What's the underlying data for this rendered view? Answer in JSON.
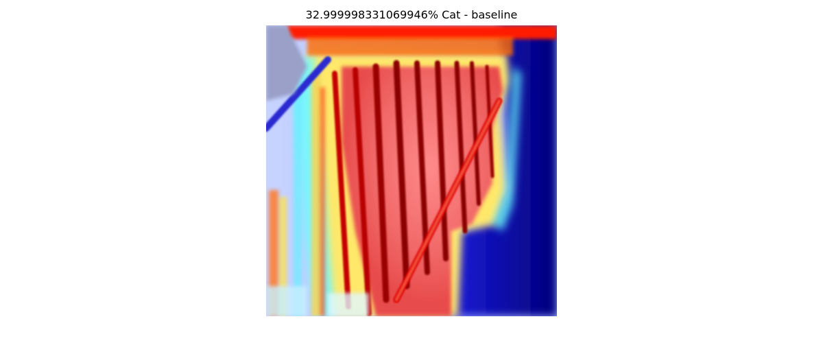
{
  "figure": {
    "title": "32.999998331069946% Cat - baseline"
  },
  "heatmap": {
    "colormap": "jet",
    "colors": {
      "background": "#ffffff",
      "low": "#00008f",
      "mid_low": "#00ffff",
      "mid": "#ffff00",
      "high": "#ff0000",
      "peak": "#b00000"
    }
  }
}
